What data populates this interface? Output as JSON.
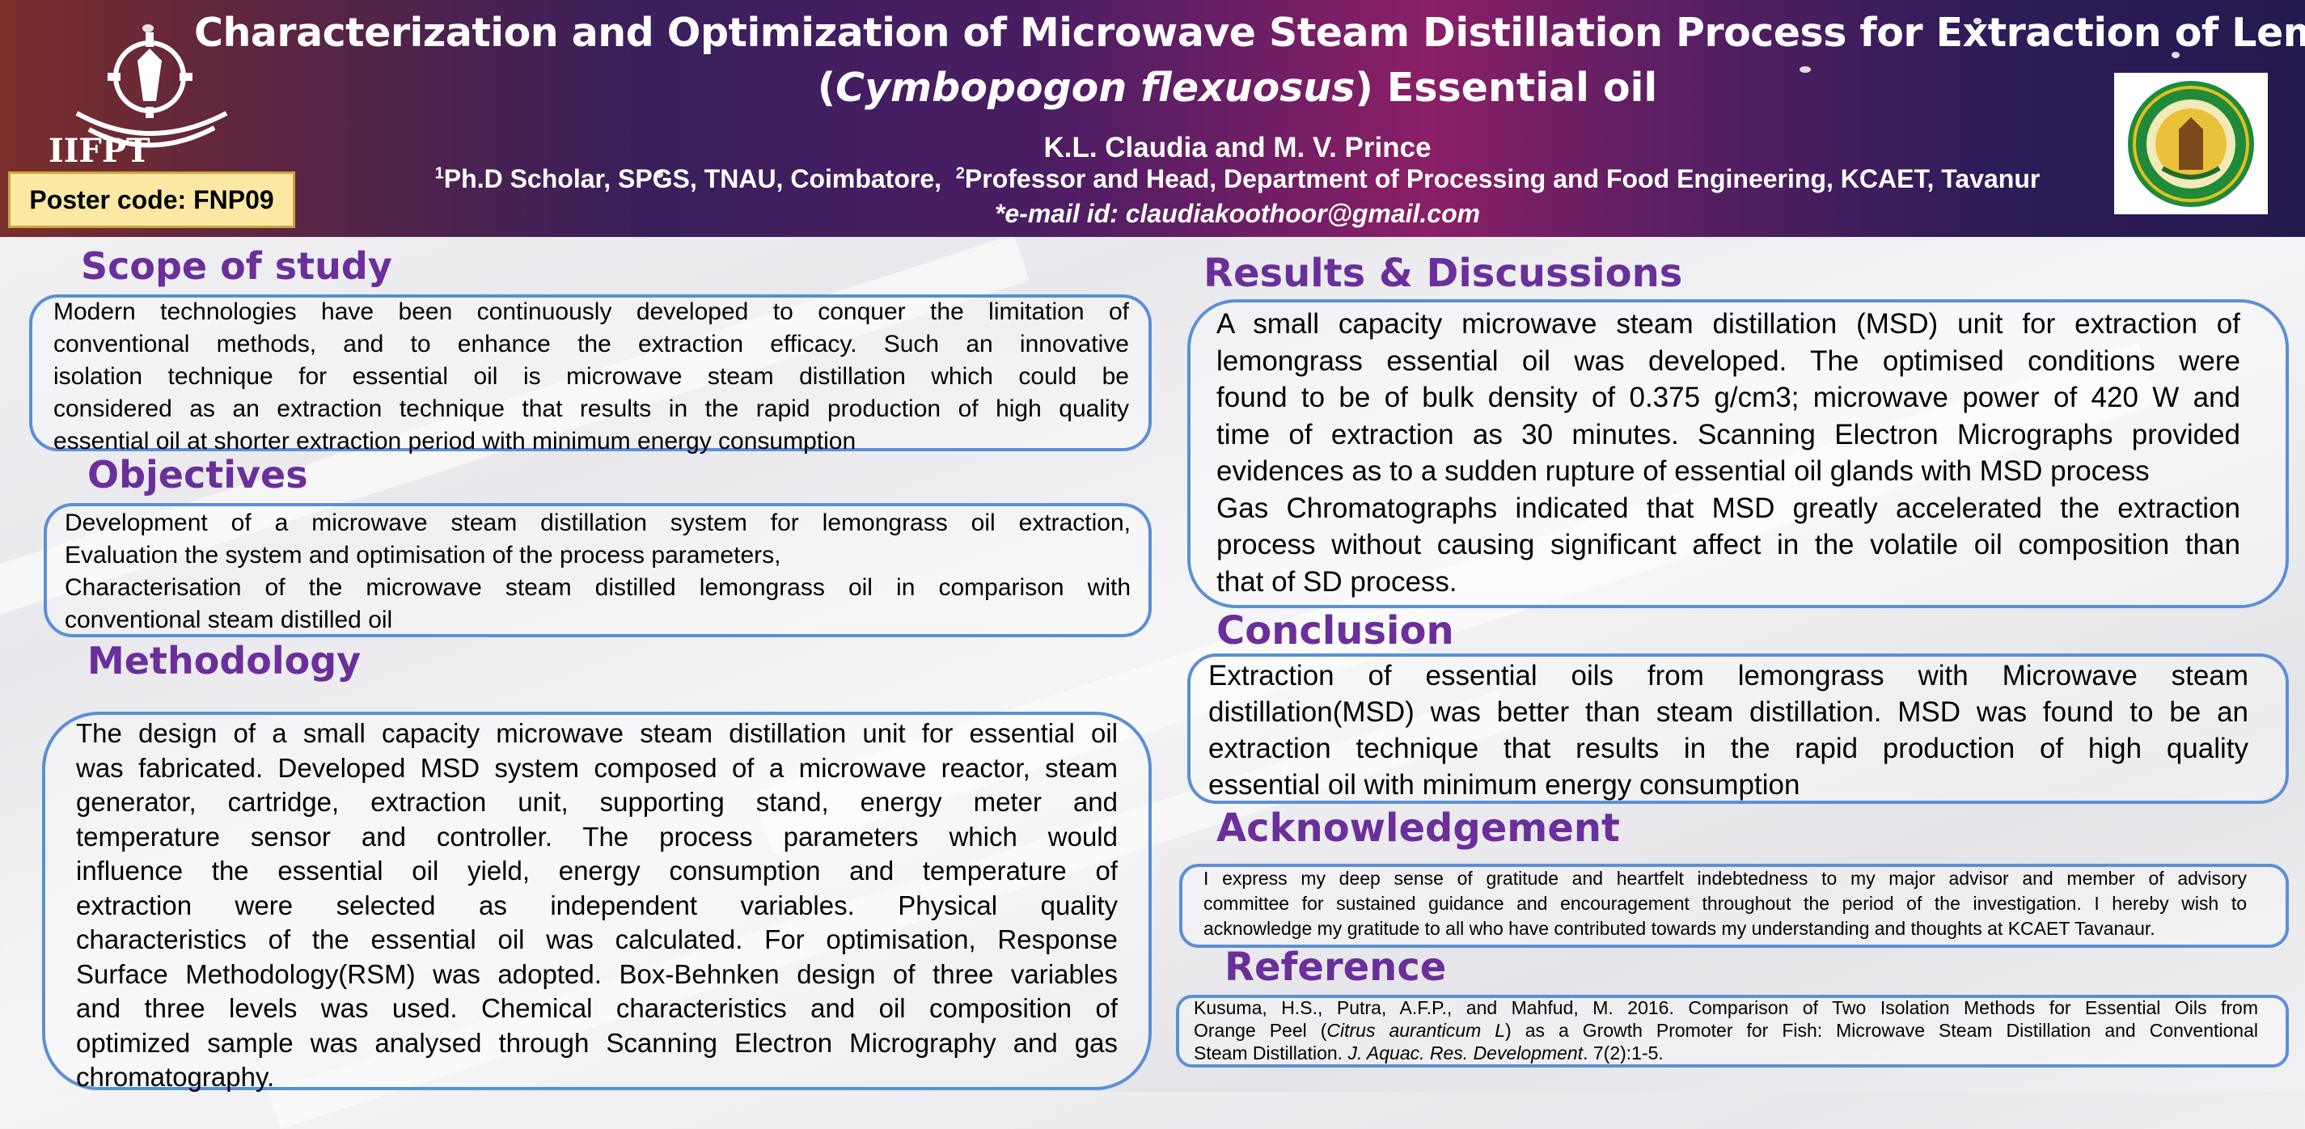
{
  "header": {
    "title_line1": "Characterization and Optimization of Microwave Steam Distillation Process for Extraction of Lemongrass",
    "title_line2_prefix": "(",
    "title_line2_species": "Cymbopogon flexuosus",
    "title_line2_suffix": ") Essential oil",
    "authors": "K.L. Claudia and M. V. Prince",
    "affil_sup1": "1",
    "affil_part1": "Ph.D Scholar, SPGS, TNAU, Coimbatore,",
    "affil_sup2": "2",
    "affil_part2": "Professor and Head, Department of Processing and Food Engineering, KCAET, Tavanur",
    "email": "*e-mail id: claudiakoothoor@gmail.com",
    "logo_left_text": "IIFPT",
    "poster_code": "Poster code: FNP09"
  },
  "scope": {
    "heading": "Scope of study",
    "lines": [
      "Modern technologies have been continuously developed to conquer the limitation of",
      "conventional methods, and to enhance the extraction efficacy. Such an innovative",
      "isolation technique for essential oil is microwave steam distillation which could be",
      "considered as an extraction technique that results in the rapid production of high quality",
      "essential oil at shorter extraction period with minimum energy consumption"
    ]
  },
  "objectives": {
    "heading": "Objectives",
    "lines": [
      "Development of a microwave steam distillation system for lemongrass oil extraction,",
      "Evaluation the system and optimisation of the process parameters,",
      "Characterisation of the microwave steam distilled lemongrass oil in comparison with",
      "conventional steam distilled oil"
    ]
  },
  "methodology": {
    "heading": "Methodology",
    "lines": [
      "The design of a small capacity microwave steam distillation unit for essential oil",
      "was fabricated. Developed MSD system composed of a microwave reactor, steam",
      "generator, cartridge, extraction unit, supporting stand, energy meter and",
      "temperature sensor and controller. The process parameters which would",
      "influence the essential oil yield, energy consumption and temperature of",
      "extraction were selected as independent variables. Physical quality",
      "characteristics of the essential oil was calculated. For optimisation, Response",
      "Surface Methodology(RSM) was adopted. Box-Behnken design of three variables",
      "and three levels was used. Chemical characteristics and oil composition of",
      "optimized sample was analysed through Scanning Electron Micrography and gas",
      "chromatography."
    ]
  },
  "results": {
    "heading": "Results & Discussions",
    "lines": [
      "A small capacity microwave steam distillation (MSD) unit for extraction of",
      "lemongrass essential oil was developed. The optimised conditions were",
      "found to be of bulk density of 0.375 g/cm3; microwave power of 420 W and",
      "time of extraction as 30 minutes. Scanning Electron Micrographs provided",
      "evidences as to a sudden rupture of essential oil glands with MSD process",
      "Gas Chromatographs indicated that MSD greatly accelerated the extraction",
      "process without causing significant affect in the volatile oil composition than",
      "that of SD process."
    ]
  },
  "conclusion": {
    "heading": "Conclusion",
    "lines": [
      "Extraction of essential oils from lemongrass with Microwave steam",
      "distillation(MSD) was better than steam distillation. MSD was found to be an",
      "extraction technique that results in the rapid production of  high quality",
      "essential oil with minimum energy consumption"
    ]
  },
  "acknowledgement": {
    "heading": "Acknowledgement",
    "lines": [
      "I express my deep sense of gratitude and heartfelt indebtedness to my major advisor and member of advisory",
      "committee for sustained guidance and encouragement throughout the period of the investigation. I hereby wish to",
      "acknowledge my gratitude to all who have contributed towards my understanding and thoughts at KCAET Tavanaur."
    ]
  },
  "reference": {
    "heading": "Reference",
    "line1": "Kusuma, H.S., Putra, A.F.P., and Mahfud, M. 2016. Comparison of Two Isolation Methods for Essential Oils from",
    "line2_prefix": "Orange Peel (",
    "line2_species": "Citrus auranticum L",
    "line2_suffix": ") as a Growth Promoter for Fish: Microwave Steam Distillation and Conventional",
    "line3_prefix": "Steam Distillation. ",
    "line3_journal": "J. Aquac. Res. Development",
    "line3_suffix": ". 7(2):1-5."
  },
  "colors": {
    "heading": "#6a2f9a",
    "box_border": "#5b8fd6",
    "poster_code_bg": "#fbe9a3"
  }
}
